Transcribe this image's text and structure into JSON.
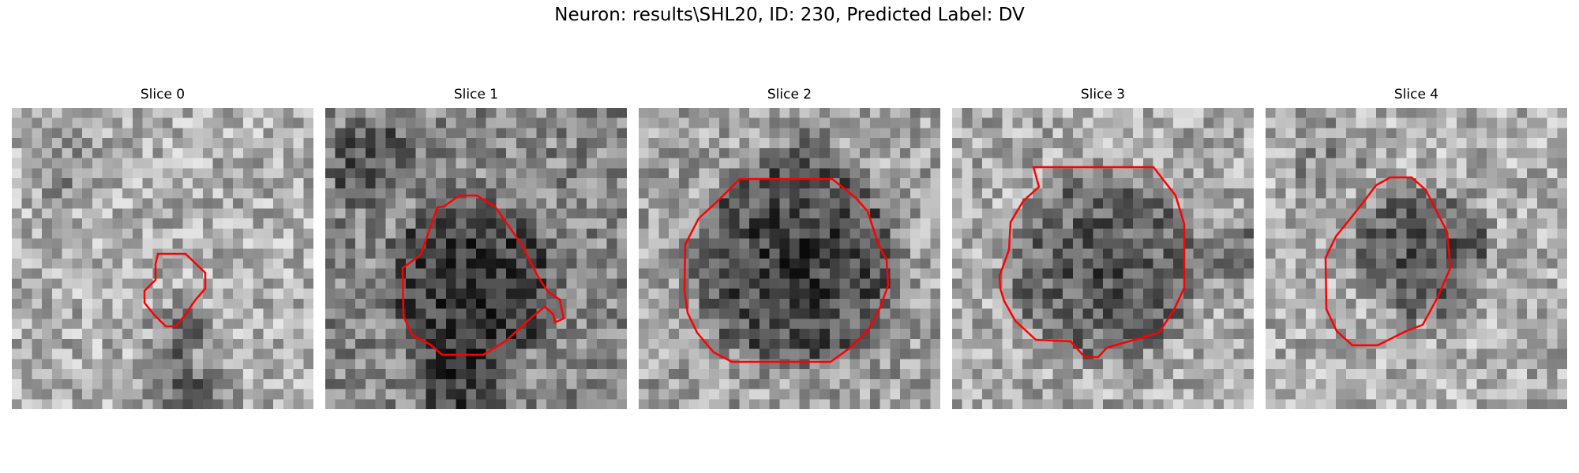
{
  "figure": {
    "title": "Neuron: results\\SHL20, ID: 230, Predicted Label: DV"
  },
  "contour_color": "#ff0000",
  "panels": [
    {
      "title": "Slice 0"
    },
    {
      "title": "Slice 1"
    },
    {
      "title": "Slice 2"
    },
    {
      "title": "Slice 3"
    },
    {
      "title": "Slice 4"
    }
  ]
}
